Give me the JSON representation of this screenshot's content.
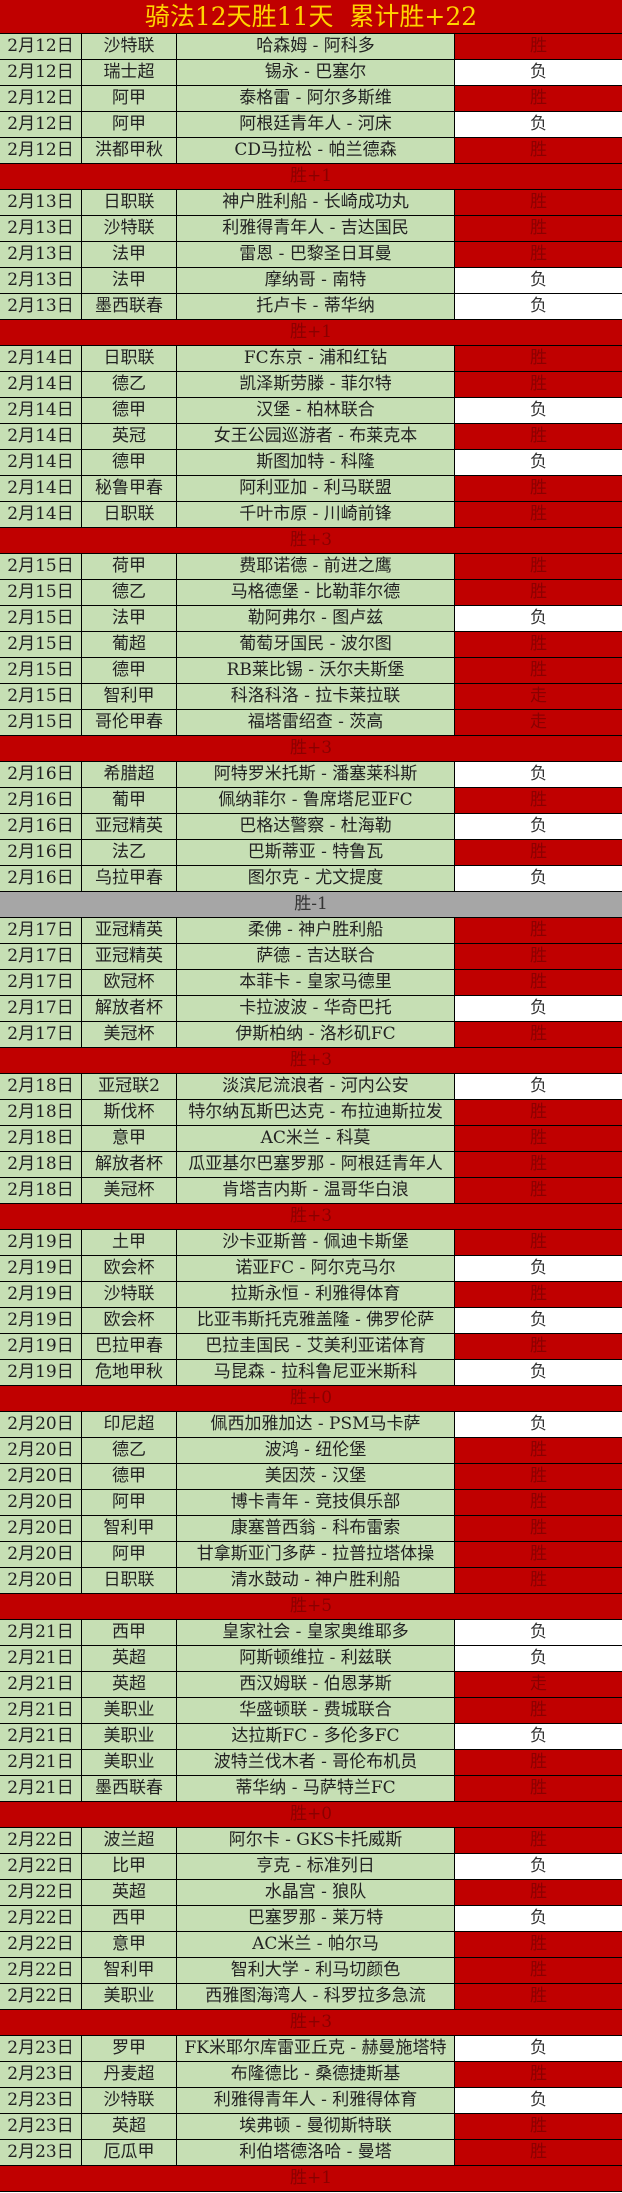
{
  "title": "骑法12天胜11天  累计胜+22",
  "colors": {
    "win": "#c00000",
    "lose": "#ffffff",
    "row": "#c6dfb4",
    "title_text": "#ffd400",
    "neutral_summary": "#a6a6a6"
  },
  "days": [
    {
      "rows": [
        [
          "2月12日",
          "沙特联",
          "哈森姆 - 阿科多",
          "胜"
        ],
        [
          "2月12日",
          "瑞士超",
          "锡永 - 巴塞尔",
          "负"
        ],
        [
          "2月12日",
          "阿甲",
          "泰格雷 - 阿尔多斯维",
          "胜"
        ],
        [
          "2月12日",
          "阿甲",
          "阿根廷青年人 - 河床",
          "负"
        ],
        [
          "2月12日",
          "洪都甲秋",
          "CD马拉松 - 帕兰德森",
          "胜"
        ]
      ],
      "summary": "胜+1",
      "summary_style": "red"
    },
    {
      "rows": [
        [
          "2月13日",
          "日职联",
          "神户胜利船 - 长崎成功丸",
          "胜"
        ],
        [
          "2月13日",
          "沙特联",
          "利雅得青年人 - 吉达国民",
          "胜"
        ],
        [
          "2月13日",
          "法甲",
          "雷恩 - 巴黎圣日耳曼",
          "胜"
        ],
        [
          "2月13日",
          "法甲",
          "摩纳哥 - 南特",
          "负"
        ],
        [
          "2月13日",
          "墨西联春",
          "托卢卡 - 蒂华纳",
          "负"
        ]
      ],
      "summary": "胜+1",
      "summary_style": "red"
    },
    {
      "rows": [
        [
          "2月14日",
          "日职联",
          "FC东京 - 浦和红钻",
          "胜"
        ],
        [
          "2月14日",
          "德乙",
          "凯泽斯劳滕 - 菲尔特",
          "胜"
        ],
        [
          "2月14日",
          "德甲",
          "汉堡 - 柏林联合",
          "负"
        ],
        [
          "2月14日",
          "英冠",
          "女王公园巡游者 - 布莱克本",
          "胜"
        ],
        [
          "2月14日",
          "德甲",
          "斯图加特 - 科隆",
          "负"
        ],
        [
          "2月14日",
          "秘鲁甲春",
          "阿利亚加 - 利马联盟",
          "胜"
        ],
        [
          "2月14日",
          "日职联",
          "千叶市原 - 川崎前锋",
          "胜"
        ]
      ],
      "summary": "胜+3",
      "summary_style": "red"
    },
    {
      "rows": [
        [
          "2月15日",
          "荷甲",
          "费耶诺德 - 前进之鹰",
          "胜"
        ],
        [
          "2月15日",
          "德乙",
          "马格德堡 - 比勒菲尔德",
          "胜"
        ],
        [
          "2月15日",
          "法甲",
          "勒阿弗尔 - 图卢兹",
          "负"
        ],
        [
          "2月15日",
          "葡超",
          "葡萄牙国民 - 波尔图",
          "胜"
        ],
        [
          "2月15日",
          "德甲",
          "RB莱比锡 - 沃尔夫斯堡",
          "胜"
        ],
        [
          "2月15日",
          "智利甲",
          "科洛科洛 - 拉卡莱拉联",
          "走"
        ],
        [
          "2月15日",
          "哥伦甲春",
          "福塔雷绍查 - 茨高",
          "走"
        ]
      ],
      "summary": "胜+3",
      "summary_style": "red"
    },
    {
      "rows": [
        [
          "2月16日",
          "希腊超",
          "阿特罗米托斯 - 潘塞莱科斯",
          "负"
        ],
        [
          "2月16日",
          "葡甲",
          "佩纳菲尔 - 鲁席塔尼亚FC",
          "胜"
        ],
        [
          "2月16日",
          "亚冠精英",
          "巴格达警察 - 杜海勒",
          "负"
        ],
        [
          "2月16日",
          "法乙",
          "巴斯蒂亚 - 特鲁瓦",
          "胜"
        ],
        [
          "2月16日",
          "乌拉甲春",
          "图尔克 - 尤文提度",
          "负"
        ]
      ],
      "summary": "胜-1",
      "summary_style": "gray"
    },
    {
      "rows": [
        [
          "2月17日",
          "亚冠精英",
          "柔佛 - 神户胜利船",
          "胜"
        ],
        [
          "2月17日",
          "亚冠精英",
          "萨德 - 吉达联合",
          "胜"
        ],
        [
          "2月17日",
          "欧冠杯",
          "本菲卡 - 皇家马德里",
          "胜"
        ],
        [
          "2月17日",
          "解放者杯",
          "卡拉波波 - 华奇巴托",
          "负"
        ],
        [
          "2月17日",
          "美冠杯",
          "伊斯柏纳 - 洛杉矶FC",
          "胜"
        ]
      ],
      "summary": "胜+3",
      "summary_style": "red"
    },
    {
      "rows": [
        [
          "2月18日",
          "亚冠联2",
          "淡滨尼流浪者 - 河内公安",
          "负"
        ],
        [
          "2月18日",
          "斯伐杯",
          "特尔纳瓦斯巴达克 - 布拉迪斯拉发",
          "胜"
        ],
        [
          "2月18日",
          "意甲",
          "AC米兰 - 科莫",
          "胜"
        ],
        [
          "2月18日",
          "解放者杯",
          "瓜亚基尔巴塞罗那 - 阿根廷青年人",
          "胜"
        ],
        [
          "2月18日",
          "美冠杯",
          "肯塔吉内斯 - 温哥华白浪",
          "胜"
        ]
      ],
      "summary": "胜+3",
      "summary_style": "red"
    },
    {
      "rows": [
        [
          "2月19日",
          "土甲",
          "沙卡亚斯普 - 佩迪卡斯堡",
          "胜"
        ],
        [
          "2月19日",
          "欧会杯",
          "诺亚FC - 阿尔克马尔",
          "负"
        ],
        [
          "2月19日",
          "沙特联",
          "拉斯永恒 - 利雅得体育",
          "胜"
        ],
        [
          "2月19日",
          "欧会杯",
          "比亚韦斯托克雅盖隆 - 佛罗伦萨",
          "负"
        ],
        [
          "2月19日",
          "巴拉甲春",
          "巴拉圭国民 - 艾美利亚诺体育",
          "胜"
        ],
        [
          "2月19日",
          "危地甲秋",
          "马昆森 - 拉科鲁尼亚米斯科",
          "负"
        ]
      ],
      "summary": "胜+0",
      "summary_style": "red"
    },
    {
      "rows": [
        [
          "2月20日",
          "印尼超",
          "佩西加雅加达 - PSM马卡萨",
          "负"
        ],
        [
          "2月20日",
          "德乙",
          "波鸿 - 纽伦堡",
          "胜"
        ],
        [
          "2月20日",
          "德甲",
          "美因茨 - 汉堡",
          "胜"
        ],
        [
          "2月20日",
          "阿甲",
          "博卡青年 - 竞技俱乐部",
          "胜"
        ],
        [
          "2月20日",
          "智利甲",
          "康塞普西翁 - 科布雷索",
          "胜"
        ],
        [
          "2月20日",
          "阿甲",
          "甘拿斯亚门多萨 - 拉普拉塔体操",
          "胜"
        ],
        [
          "2月20日",
          "日职联",
          "清水鼓动 - 神户胜利船",
          "胜"
        ]
      ],
      "summary": "胜+5",
      "summary_style": "red"
    },
    {
      "rows": [
        [
          "2月21日",
          "西甲",
          "皇家社会 - 皇家奥维耶多",
          "负"
        ],
        [
          "2月21日",
          "英超",
          "阿斯顿维拉 - 利兹联",
          "负"
        ],
        [
          "2月21日",
          "英超",
          "西汉姆联 - 伯恩茅斯",
          "走"
        ],
        [
          "2月21日",
          "美职业",
          "华盛顿联 - 费城联合",
          "胜"
        ],
        [
          "2月21日",
          "美职业",
          "达拉斯FC - 多伦多FC",
          "负"
        ],
        [
          "2月21日",
          "美职业",
          "波特兰伐木者 - 哥伦布机员",
          "胜"
        ],
        [
          "2月21日",
          "墨西联春",
          "蒂华纳 - 马萨特兰FC",
          "胜"
        ]
      ],
      "summary": "胜+0",
      "summary_style": "red"
    },
    {
      "rows": [
        [
          "2月22日",
          "波兰超",
          "阿尔卡 - GKS卡托威斯",
          "胜"
        ],
        [
          "2月22日",
          "比甲",
          "亨克 - 标准列日",
          "负"
        ],
        [
          "2月22日",
          "英超",
          "水晶宫 - 狼队",
          "胜"
        ],
        [
          "2月22日",
          "西甲",
          "巴塞罗那 - 莱万特",
          "负"
        ],
        [
          "2月22日",
          "意甲",
          "AC米兰 - 帕尔马",
          "胜"
        ],
        [
          "2月22日",
          "智利甲",
          "智利大学 - 利马切颜色",
          "胜"
        ],
        [
          "2月22日",
          "美职业",
          "西雅图海湾人 - 科罗拉多急流",
          "胜"
        ]
      ],
      "summary": "胜+3",
      "summary_style": "red"
    },
    {
      "rows": [
        [
          "2月23日",
          "罗甲",
          "FK米耶尔库雷亚丘克 - 赫曼施塔特",
          "负"
        ],
        [
          "2月23日",
          "丹麦超",
          "布隆德比 - 桑德捷斯基",
          "胜"
        ],
        [
          "2月23日",
          "沙特联",
          "利雅得青年人 - 利雅得体育",
          "负"
        ],
        [
          "2月23日",
          "英超",
          "埃弗顿 - 曼彻斯特联",
          "胜"
        ],
        [
          "2月23日",
          "厄瓜甲",
          "利伯塔德洛哈 - 曼塔",
          "胜"
        ]
      ],
      "summary": "胜+1",
      "summary_style": "red"
    }
  ]
}
